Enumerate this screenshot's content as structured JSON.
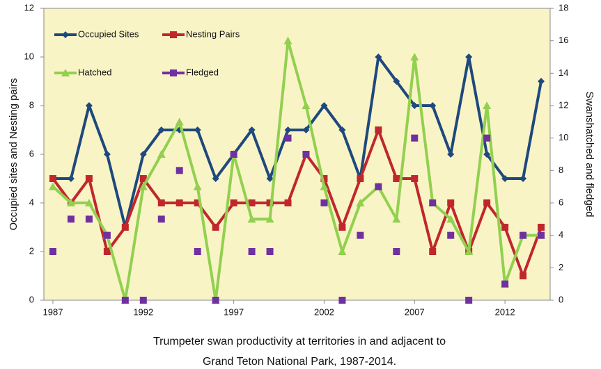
{
  "chart_data": {
    "type": "line",
    "caption": [
      "Trumpeter swan productivity at territories in and adjacent to",
      "Grand Teton National Park, 1987-2014."
    ],
    "ylabel": "Occupied sites and Nesting pairs",
    "y2label": "Swanshatched and fledged",
    "x": [
      1987,
      1988,
      1989,
      1990,
      1991,
      1992,
      1993,
      1994,
      1995,
      1996,
      1997,
      1998,
      1999,
      2000,
      2001,
      2002,
      2003,
      2004,
      2005,
      2006,
      2007,
      2008,
      2009,
      2010,
      2011,
      2012,
      2013,
      2014
    ],
    "xlim": [
      1986.5,
      2014.5
    ],
    "xticks": [
      1987,
      1992,
      1997,
      2002,
      2007,
      2012
    ],
    "ylim": [
      0,
      12
    ],
    "yticks": [
      0,
      2,
      4,
      6,
      8,
      10,
      12
    ],
    "y2lim": [
      0,
      18
    ],
    "y2ticks": [
      0,
      2,
      4,
      6,
      8,
      10,
      12,
      14,
      16,
      18
    ],
    "background": "#f9f4c6",
    "legend": "upper left",
    "series": [
      {
        "name": "Occupied Sites",
        "color": "#1f497d",
        "marker": "diamond",
        "line": true,
        "values": [
          5,
          5,
          8,
          6,
          3,
          6,
          7,
          7,
          7,
          5,
          6,
          7,
          5,
          7,
          7,
          8,
          7,
          5,
          10,
          9,
          8,
          8,
          6,
          10,
          6,
          5,
          5,
          9
        ]
      },
      {
        "name": "Nesting Pairs",
        "color": "#c0272d",
        "marker": "square",
        "line": true,
        "values": [
          5,
          4,
          5,
          2,
          3,
          5,
          4,
          4,
          4,
          3,
          4,
          4,
          4,
          4,
          6,
          5,
          3,
          5,
          7,
          5,
          5,
          2,
          4,
          2,
          4,
          3,
          1,
          3
        ]
      },
      {
        "name": "Hatched",
        "color": "#92d050",
        "marker": "triangle",
        "line": true,
        "axis": "y2",
        "values": [
          7,
          6,
          6,
          4,
          0,
          7,
          9,
          11,
          7,
          0,
          9,
          5,
          5,
          16,
          12,
          7,
          3,
          6,
          7,
          5,
          15,
          6,
          5,
          3,
          12,
          1,
          4,
          4
        ]
      },
      {
        "name": "Fledged",
        "color": "#7030a0",
        "marker": "square",
        "line": false,
        "axis": "y2",
        "values": [
          3,
          5,
          5,
          4,
          0,
          0,
          5,
          8,
          3,
          0,
          9,
          3,
          3,
          10,
          9,
          6,
          0,
          4,
          7,
          3,
          10,
          6,
          4,
          0,
          10,
          1,
          4,
          4
        ]
      }
    ]
  }
}
